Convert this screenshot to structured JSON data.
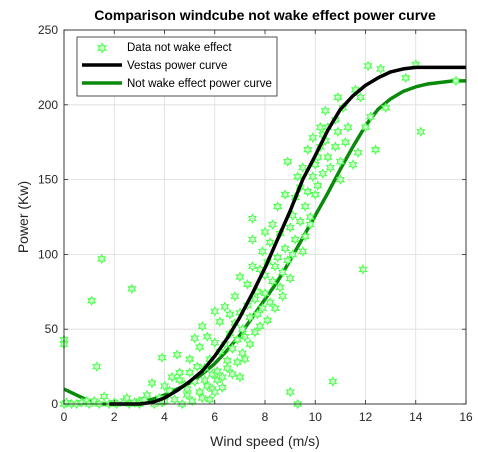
{
  "chart_data": {
    "type": "scatter",
    "title": "Comparison windcube not wake effect power curve",
    "xlabel": "Wind speed (m/s)",
    "ylabel": "Power (Kw)",
    "xlim": [
      0,
      16
    ],
    "ylim": [
      0,
      250
    ],
    "xticks": [
      "0",
      "2",
      "4",
      "6",
      "8",
      "10",
      "12",
      "14",
      "16"
    ],
    "yticks": [
      "0",
      "50",
      "100",
      "150",
      "200",
      "250"
    ],
    "grid": true,
    "legend_position": "top-left",
    "colors": {
      "scatter_edge": "#4dff4d",
      "scatter_fill": "#ccffcc",
      "vestas": "#000000",
      "fit": "#0a8a0a"
    },
    "series": [
      {
        "name": "Data not wake effect",
        "kind": "scatter",
        "marker": "hexagram",
        "points": [
          [
            0.0,
            43
          ],
          [
            0.0,
            40
          ],
          [
            0.0,
            0
          ],
          [
            0.1,
            1
          ],
          [
            0.3,
            0
          ],
          [
            0.5,
            0
          ],
          [
            0.7,
            1
          ],
          [
            0.9,
            2
          ],
          [
            1.0,
            0
          ],
          [
            1.1,
            69
          ],
          [
            1.2,
            2
          ],
          [
            1.3,
            25
          ],
          [
            1.4,
            0
          ],
          [
            1.5,
            97
          ],
          [
            1.6,
            5
          ],
          [
            1.8,
            0
          ],
          [
            2.0,
            1
          ],
          [
            2.1,
            0
          ],
          [
            2.4,
            2
          ],
          [
            2.5,
            4
          ],
          [
            2.6,
            0
          ],
          [
            2.7,
            77
          ],
          [
            2.8,
            1
          ],
          [
            3.0,
            2
          ],
          [
            3.0,
            0
          ],
          [
            3.2,
            3
          ],
          [
            3.3,
            6
          ],
          [
            3.5,
            14
          ],
          [
            3.6,
            0
          ],
          [
            3.8,
            4
          ],
          [
            3.9,
            1
          ],
          [
            3.9,
            31
          ],
          [
            4.0,
            12
          ],
          [
            4.0,
            2
          ],
          [
            4.2,
            9
          ],
          [
            4.3,
            18
          ],
          [
            4.4,
            3
          ],
          [
            4.5,
            33
          ],
          [
            4.6,
            16
          ],
          [
            4.6,
            21
          ],
          [
            4.7,
            0
          ],
          [
            4.8,
            13
          ],
          [
            4.9,
            6
          ],
          [
            4.9,
            10
          ],
          [
            5.0,
            30
          ],
          [
            5.0,
            21
          ],
          [
            5.1,
            2
          ],
          [
            5.2,
            15
          ],
          [
            5.2,
            44
          ],
          [
            5.3,
            25
          ],
          [
            5.4,
            8
          ],
          [
            5.4,
            38
          ],
          [
            5.5,
            4
          ],
          [
            5.5,
            52
          ],
          [
            5.6,
            16
          ],
          [
            5.6,
            24
          ],
          [
            5.7,
            12
          ],
          [
            5.7,
            45
          ],
          [
            5.8,
            3
          ],
          [
            5.8,
            30
          ],
          [
            5.9,
            10
          ],
          [
            5.9,
            20
          ],
          [
            6.0,
            8
          ],
          [
            6.0,
            41
          ],
          [
            6.0,
            62
          ],
          [
            6.1,
            22
          ],
          [
            6.1,
            16
          ],
          [
            6.2,
            35
          ],
          [
            6.2,
            55
          ],
          [
            6.3,
            18
          ],
          [
            6.3,
            11
          ],
          [
            6.4,
            40
          ],
          [
            6.4,
            65
          ],
          [
            6.5,
            29
          ],
          [
            6.5,
            24
          ],
          [
            6.6,
            60
          ],
          [
            6.6,
            47
          ],
          [
            6.7,
            20
          ],
          [
            6.7,
            37
          ],
          [
            6.8,
            72
          ],
          [
            6.8,
            54
          ],
          [
            6.9,
            28
          ],
          [
            6.9,
            43
          ],
          [
            7.0,
            18
          ],
          [
            7.0,
            85
          ],
          [
            7.0,
            61
          ],
          [
            7.1,
            34
          ],
          [
            7.1,
            50
          ],
          [
            7.2,
            30
          ],
          [
            7.2,
            45
          ],
          [
            7.3,
            80
          ],
          [
            7.3,
            66
          ],
          [
            7.4,
            40
          ],
          [
            7.4,
            58
          ],
          [
            7.5,
            124
          ],
          [
            7.5,
            110
          ],
          [
            7.5,
            92
          ],
          [
            7.6,
            70
          ],
          [
            7.6,
            48
          ],
          [
            7.7,
            75
          ],
          [
            7.7,
            60
          ],
          [
            7.8,
            52
          ],
          [
            7.8,
            90
          ],
          [
            7.9,
            102
          ],
          [
            7.9,
            64
          ],
          [
            8.0,
            86
          ],
          [
            8.0,
            115
          ],
          [
            8.0,
            74
          ],
          [
            8.1,
            56
          ],
          [
            8.1,
            95
          ],
          [
            8.2,
            68
          ],
          [
            8.2,
            108
          ],
          [
            8.3,
            82
          ],
          [
            8.3,
            120
          ],
          [
            8.4,
            92
          ],
          [
            8.4,
            64
          ],
          [
            8.5,
            132
          ],
          [
            8.5,
            98
          ],
          [
            8.6,
            78
          ],
          [
            8.6,
            114
          ],
          [
            8.7,
            88
          ],
          [
            8.7,
            72
          ],
          [
            8.8,
            140
          ],
          [
            8.8,
            104
          ],
          [
            8.9,
            96
          ],
          [
            8.9,
            162
          ],
          [
            9.0,
            84
          ],
          [
            9.0,
            118
          ],
          [
            9.0,
            8
          ],
          [
            9.1,
            126
          ],
          [
            9.1,
            100
          ],
          [
            9.2,
            110
          ],
          [
            9.2,
            138
          ],
          [
            9.3,
            152
          ],
          [
            9.3,
            0
          ],
          [
            9.4,
            122
          ],
          [
            9.4,
            145
          ],
          [
            9.5,
            102
          ],
          [
            9.5,
            158
          ],
          [
            9.6,
            132
          ],
          [
            9.6,
            112
          ],
          [
            9.7,
            170
          ],
          [
            9.7,
            142
          ],
          [
            9.8,
            120
          ],
          [
            9.8,
            125
          ],
          [
            9.9,
            178
          ],
          [
            9.9,
            152
          ],
          [
            10.0,
            140
          ],
          [
            10.0,
            160
          ],
          [
            10.1,
            165
          ],
          [
            10.1,
            146
          ],
          [
            10.2,
            185
          ],
          [
            10.2,
            172
          ],
          [
            10.3,
            154
          ],
          [
            10.3,
            180
          ],
          [
            10.4,
            176
          ],
          [
            10.4,
            196
          ],
          [
            10.5,
            165
          ],
          [
            10.5,
            185
          ],
          [
            10.6,
            158
          ],
          [
            10.7,
            15
          ],
          [
            10.8,
            190
          ],
          [
            10.8,
            172
          ],
          [
            10.9,
            205
          ],
          [
            10.9,
            182
          ],
          [
            11.0,
            162
          ],
          [
            11.0,
            150
          ],
          [
            11.1,
            198
          ],
          [
            11.2,
            175
          ],
          [
            11.3,
            185
          ],
          [
            11.5,
            160
          ],
          [
            11.6,
            210
          ],
          [
            11.7,
            168
          ],
          [
            11.8,
            205
          ],
          [
            11.9,
            90
          ],
          [
            12.0,
            185
          ],
          [
            12.1,
            226
          ],
          [
            12.2,
            192
          ],
          [
            12.4,
            170
          ],
          [
            12.6,
            224
          ],
          [
            12.8,
            198
          ],
          [
            13.6,
            218
          ],
          [
            14.0,
            227
          ],
          [
            14.2,
            182
          ],
          [
            15.6,
            216
          ]
        ]
      },
      {
        "name": "Vestas power curve",
        "kind": "line",
        "points": [
          [
            1.8,
            0
          ],
          [
            2.5,
            0
          ],
          [
            3.0,
            0
          ],
          [
            3.5,
            1
          ],
          [
            4.0,
            4
          ],
          [
            4.5,
            9
          ],
          [
            5.0,
            15
          ],
          [
            5.5,
            22
          ],
          [
            6.0,
            32
          ],
          [
            6.5,
            44
          ],
          [
            7.0,
            58
          ],
          [
            7.5,
            74
          ],
          [
            8.0,
            91
          ],
          [
            8.5,
            110
          ],
          [
            9.0,
            129
          ],
          [
            9.5,
            150
          ],
          [
            10.0,
            166
          ],
          [
            10.5,
            183
          ],
          [
            11.0,
            197
          ],
          [
            11.5,
            206
          ],
          [
            12.0,
            213
          ],
          [
            12.5,
            218
          ],
          [
            13.0,
            222
          ],
          [
            13.5,
            224
          ],
          [
            14.0,
            225
          ],
          [
            15.0,
            225
          ],
          [
            16.0,
            225
          ]
        ]
      },
      {
        "name": "Not wake effect power curve",
        "kind": "line",
        "points": [
          [
            0.0,
            10
          ],
          [
            0.5,
            6
          ],
          [
            1.0,
            2
          ],
          [
            1.5,
            0
          ],
          [
            2.0,
            0
          ],
          [
            2.5,
            0
          ],
          [
            3.0,
            1
          ],
          [
            3.5,
            3
          ],
          [
            4.0,
            6
          ],
          [
            4.5,
            10
          ],
          [
            5.0,
            14
          ],
          [
            5.5,
            20
          ],
          [
            6.0,
            27
          ],
          [
            6.5,
            36
          ],
          [
            7.0,
            46
          ],
          [
            7.5,
            58
          ],
          [
            8.0,
            70
          ],
          [
            8.5,
            82
          ],
          [
            9.0,
            96
          ],
          [
            9.5,
            111
          ],
          [
            10.0,
            126
          ],
          [
            10.5,
            141
          ],
          [
            11.0,
            157
          ],
          [
            11.5,
            172
          ],
          [
            12.0,
            186
          ],
          [
            12.5,
            197
          ],
          [
            13.0,
            204
          ],
          [
            13.5,
            209
          ],
          [
            14.0,
            212
          ],
          [
            14.5,
            214
          ],
          [
            15.0,
            215
          ],
          [
            15.5,
            216
          ],
          [
            16.0,
            216
          ]
        ]
      }
    ]
  }
}
